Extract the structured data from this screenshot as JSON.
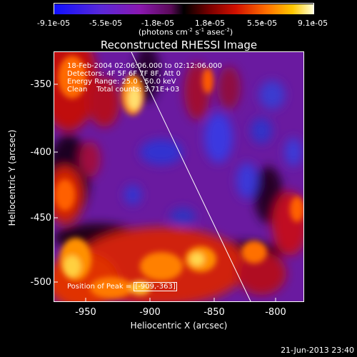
{
  "colorbar": {
    "tick_labels": [
      "-9.1e-05",
      "-5.5e-05",
      "-1.8e-05",
      "1.8e-05",
      "5.5e-05",
      "9.1e-05"
    ],
    "units_prefix": "(photons cm",
    "units_exp1": "-2",
    "units_mid": " s",
    "units_exp2": "-1",
    "units_mid2": " asec",
    "units_exp3": "-2",
    "units_suffix": ")"
  },
  "title": "Reconstructed RHESSI Image",
  "axes": {
    "xlabel": "Heliocentric X (arcsec)",
    "ylabel": "Heliocentric Y (arcsec)",
    "xticks": [
      "-950",
      "-900",
      "-850",
      "-800"
    ],
    "yticks": [
      "-350",
      "-400",
      "-450",
      "-500"
    ]
  },
  "info": {
    "line1": "18-Feb-2004 02:06:06.000 to 02:12:06.000",
    "line2": "Detectors: 4F 5F 6F 7F 8F, Att 0",
    "line3": "Energy Range: 25.0 - 50.0 keV",
    "line4": "Clean    Total counts: 3.71E+03"
  },
  "peak": {
    "label": "Position of Peak = ",
    "value": "[-909,-363]"
  },
  "footer_timestamp": "21-Jun-2013 23:40"
}
